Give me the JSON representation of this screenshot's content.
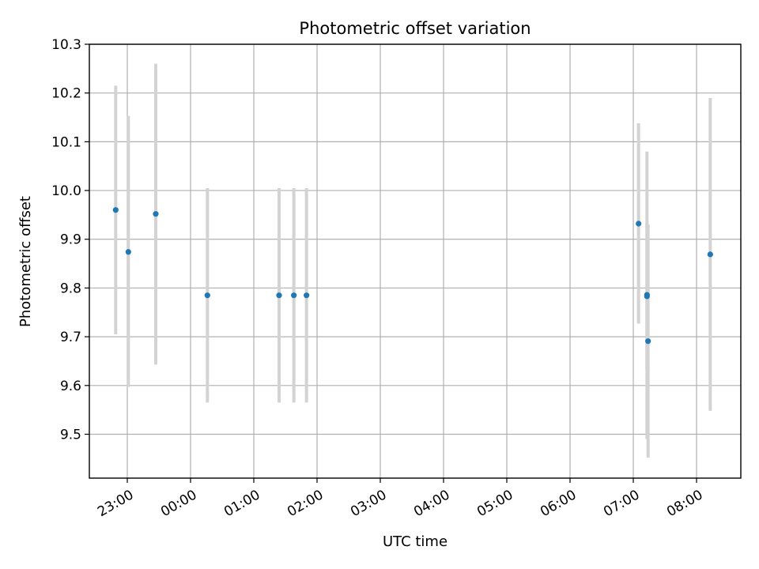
{
  "chart_data": {
    "type": "scatter",
    "title": "Photometric offset variation",
    "xlabel": "UTC time",
    "ylabel": "Photometric offset",
    "grid": true,
    "xlim": [
      "22:24",
      "08:42"
    ],
    "ylim": [
      9.41,
      10.3
    ],
    "x_ticks": [
      "23:00",
      "00:00",
      "01:00",
      "02:00",
      "03:00",
      "04:00",
      "05:00",
      "06:00",
      "07:00",
      "08:00"
    ],
    "y_ticks": [
      9.5,
      9.6,
      9.7,
      9.8,
      9.9,
      10.0,
      10.1,
      10.2,
      10.3
    ],
    "y_tick_labels": [
      "9.5",
      "9.6",
      "9.7",
      "9.8",
      "9.9",
      "10.0",
      "10.1",
      "10.2",
      "10.3"
    ],
    "marker_color": "#1f77b4",
    "errorbar_color": "#d3d3d3",
    "points": [
      {
        "x": "22:49",
        "y": 9.96,
        "err_low": 9.705,
        "err_high": 10.215
      },
      {
        "x": "23:01",
        "y": 9.874,
        "err_low": 9.597,
        "err_high": 10.153
      },
      {
        "x": "23:27",
        "y": 9.952,
        "err_low": 9.643,
        "err_high": 10.26
      },
      {
        "x": "00:16",
        "y": 9.785,
        "err_low": 9.565,
        "err_high": 10.005
      },
      {
        "x": "01:24",
        "y": 9.785,
        "err_low": 9.565,
        "err_high": 10.005
      },
      {
        "x": "01:38",
        "y": 9.785,
        "err_low": 9.565,
        "err_high": 10.005
      },
      {
        "x": "01:50",
        "y": 9.785,
        "err_low": 9.565,
        "err_high": 10.005
      },
      {
        "x": "07:05",
        "y": 9.932,
        "err_low": 9.727,
        "err_high": 10.138
      },
      {
        "x": "07:13",
        "y": 9.786,
        "err_low": 9.49,
        "err_high": 10.08
      },
      {
        "x": "07:13",
        "y": 9.783,
        "err_low": 9.633,
        "err_high": 9.933
      },
      {
        "x": "07:14",
        "y": 9.691,
        "err_low": 9.452,
        "err_high": 9.93
      },
      {
        "x": "08:13",
        "y": 9.869,
        "err_low": 9.548,
        "err_high": 10.19
      }
    ]
  }
}
